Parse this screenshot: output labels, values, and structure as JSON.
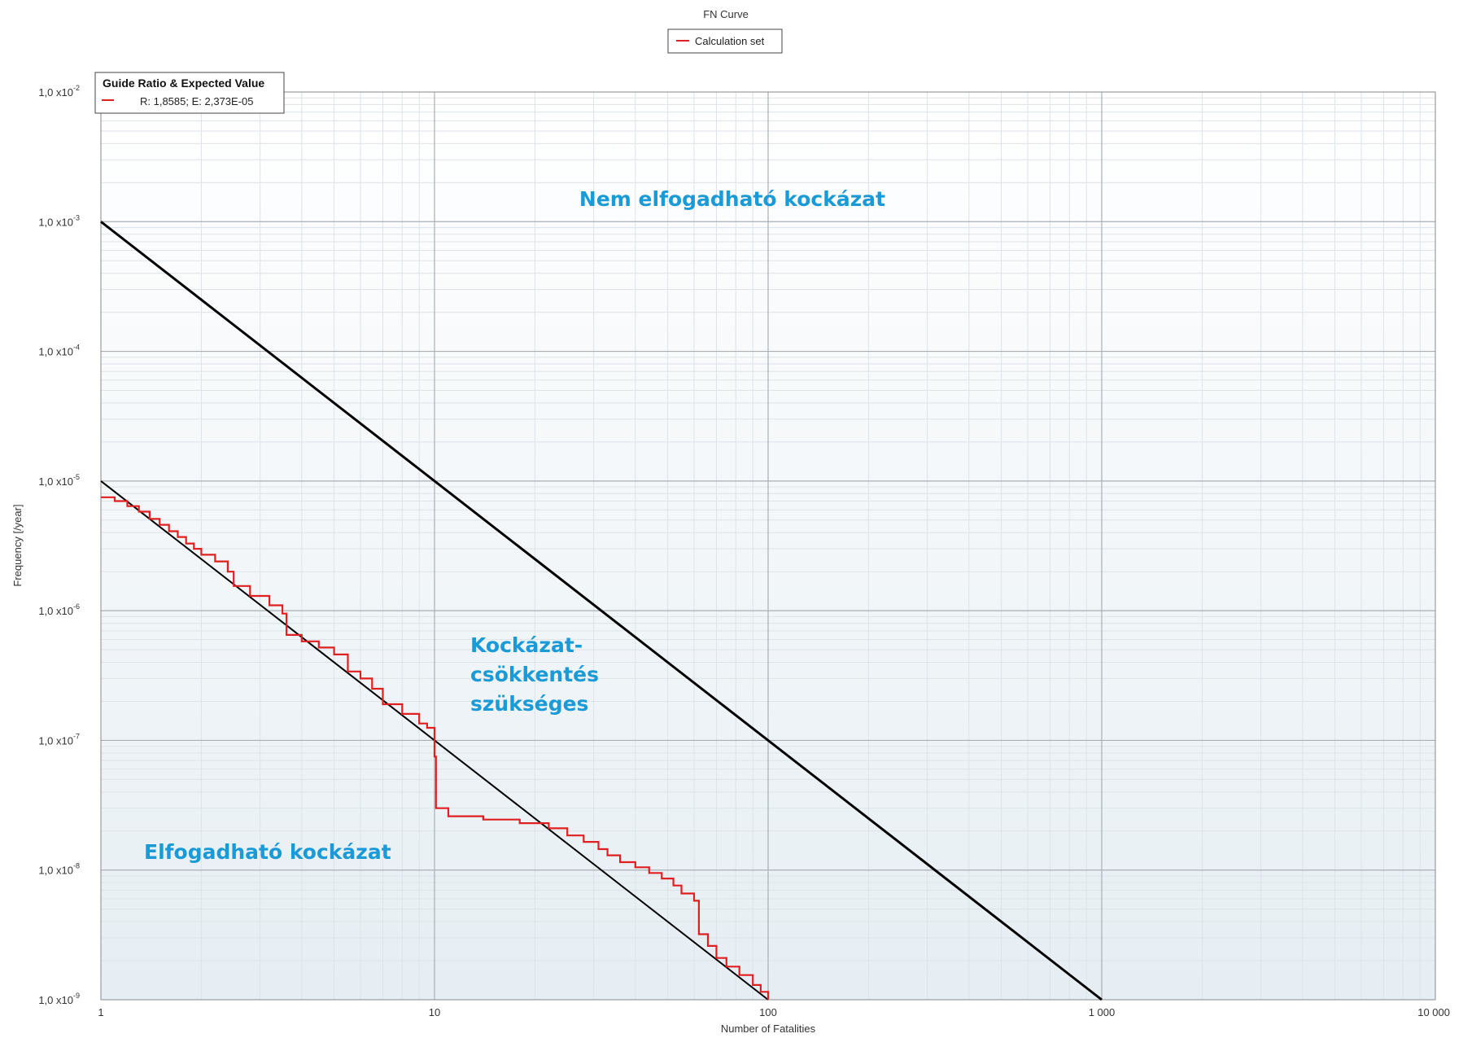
{
  "chart_data": {
    "type": "line",
    "title": "FN Curve",
    "xlabel": "Number of Fatalities",
    "ylabel": "Frequency [/year]",
    "xscale": "log",
    "yscale": "log",
    "xlim": [
      1,
      10000
    ],
    "ylim": [
      1e-09,
      0.01
    ],
    "grid": true,
    "legend_position": "top-center",
    "x_tick_labels": [
      "1",
      "10",
      "100",
      "1 000",
      "10 000"
    ],
    "y_tick_labels": [
      {
        "mantissa": "1,0 x10",
        "exponent": "-9"
      },
      {
        "mantissa": "1,0 x10",
        "exponent": "-8"
      },
      {
        "mantissa": "1,0 x10",
        "exponent": "-7"
      },
      {
        "mantissa": "1,0 x10",
        "exponent": "-6"
      },
      {
        "mantissa": "1,0 x10",
        "exponent": "-5"
      },
      {
        "mantissa": "1,0 x10",
        "exponent": "-4"
      },
      {
        "mantissa": "1,0 x10",
        "exponent": "-3"
      },
      {
        "mantissa": "1,0 x10",
        "exponent": "-2"
      }
    ],
    "legend": [
      {
        "label": "Calculation set",
        "color": "#e02020"
      }
    ],
    "guide_box": {
      "title": "Guide Ratio & Expected Value",
      "entry": "R: 1,8585; E: 2,373E-05"
    },
    "criteria_lines": [
      {
        "points": [
          [
            1,
            0.001
          ],
          [
            1000,
            1e-09
          ]
        ],
        "color": "#000000"
      },
      {
        "points": [
          [
            1,
            1e-05
          ],
          [
            100,
            1e-09
          ]
        ],
        "color": "#000000"
      }
    ],
    "series": [
      {
        "name": "Calculation set",
        "color": "#e02020",
        "step": true,
        "points": [
          [
            1,
            7.5e-06
          ],
          [
            1.1,
            7e-06
          ],
          [
            1.2,
            6.4e-06
          ],
          [
            1.3,
            5.8e-06
          ],
          [
            1.4,
            5.1e-06
          ],
          [
            1.5,
            4.6e-06
          ],
          [
            1.6,
            4.1e-06
          ],
          [
            1.7,
            3.7e-06
          ],
          [
            1.8,
            3.3e-06
          ],
          [
            1.9,
            3e-06
          ],
          [
            2,
            2.7e-06
          ],
          [
            2.2,
            2.4e-06
          ],
          [
            2.4,
            2e-06
          ],
          [
            2.5,
            1.55e-06
          ],
          [
            2.8,
            1.3e-06
          ],
          [
            3.2,
            1.1e-06
          ],
          [
            3.5,
            9.5e-07
          ],
          [
            3.6,
            6.5e-07
          ],
          [
            4,
            5.8e-07
          ],
          [
            4.5,
            5.2e-07
          ],
          [
            5,
            4.6e-07
          ],
          [
            5.5,
            3.4e-07
          ],
          [
            6,
            3e-07
          ],
          [
            6.5,
            2.5e-07
          ],
          [
            7,
            1.9e-07
          ],
          [
            8,
            1.6e-07
          ],
          [
            9,
            1.35e-07
          ],
          [
            9.5,
            1.25e-07
          ],
          [
            10,
            7.5e-08
          ],
          [
            10.1,
            3e-08
          ],
          [
            11,
            2.6e-08
          ],
          [
            14,
            2.45e-08
          ],
          [
            18,
            2.3e-08
          ],
          [
            22,
            2.1e-08
          ],
          [
            25,
            1.85e-08
          ],
          [
            28,
            1.65e-08
          ],
          [
            31,
            1.45e-08
          ],
          [
            33,
            1.3e-08
          ],
          [
            36,
            1.15e-08
          ],
          [
            40,
            1.05e-08
          ],
          [
            44,
            9.5e-09
          ],
          [
            48,
            8.6e-09
          ],
          [
            52,
            7.6e-09
          ],
          [
            55,
            6.6e-09
          ],
          [
            60,
            5.8e-09
          ],
          [
            62,
            3.2e-09
          ],
          [
            66,
            2.6e-09
          ],
          [
            70,
            2.1e-09
          ],
          [
            75,
            1.8e-09
          ],
          [
            82,
            1.55e-09
          ],
          [
            90,
            1.3e-09
          ],
          [
            95,
            1.15e-09
          ],
          [
            100,
            1e-09
          ]
        ]
      }
    ],
    "zone_labels": [
      {
        "lines": [
          "Nem elfogadható kockázat"
        ],
        "color": "#1a9ad6"
      },
      {
        "lines": [
          "Kockázat-",
          "csökkentés",
          "szükséges"
        ],
        "color": "#1a9ad6"
      },
      {
        "lines": [
          "Elfogadható kockázat"
        ],
        "color": "#1a9ad6"
      }
    ]
  }
}
